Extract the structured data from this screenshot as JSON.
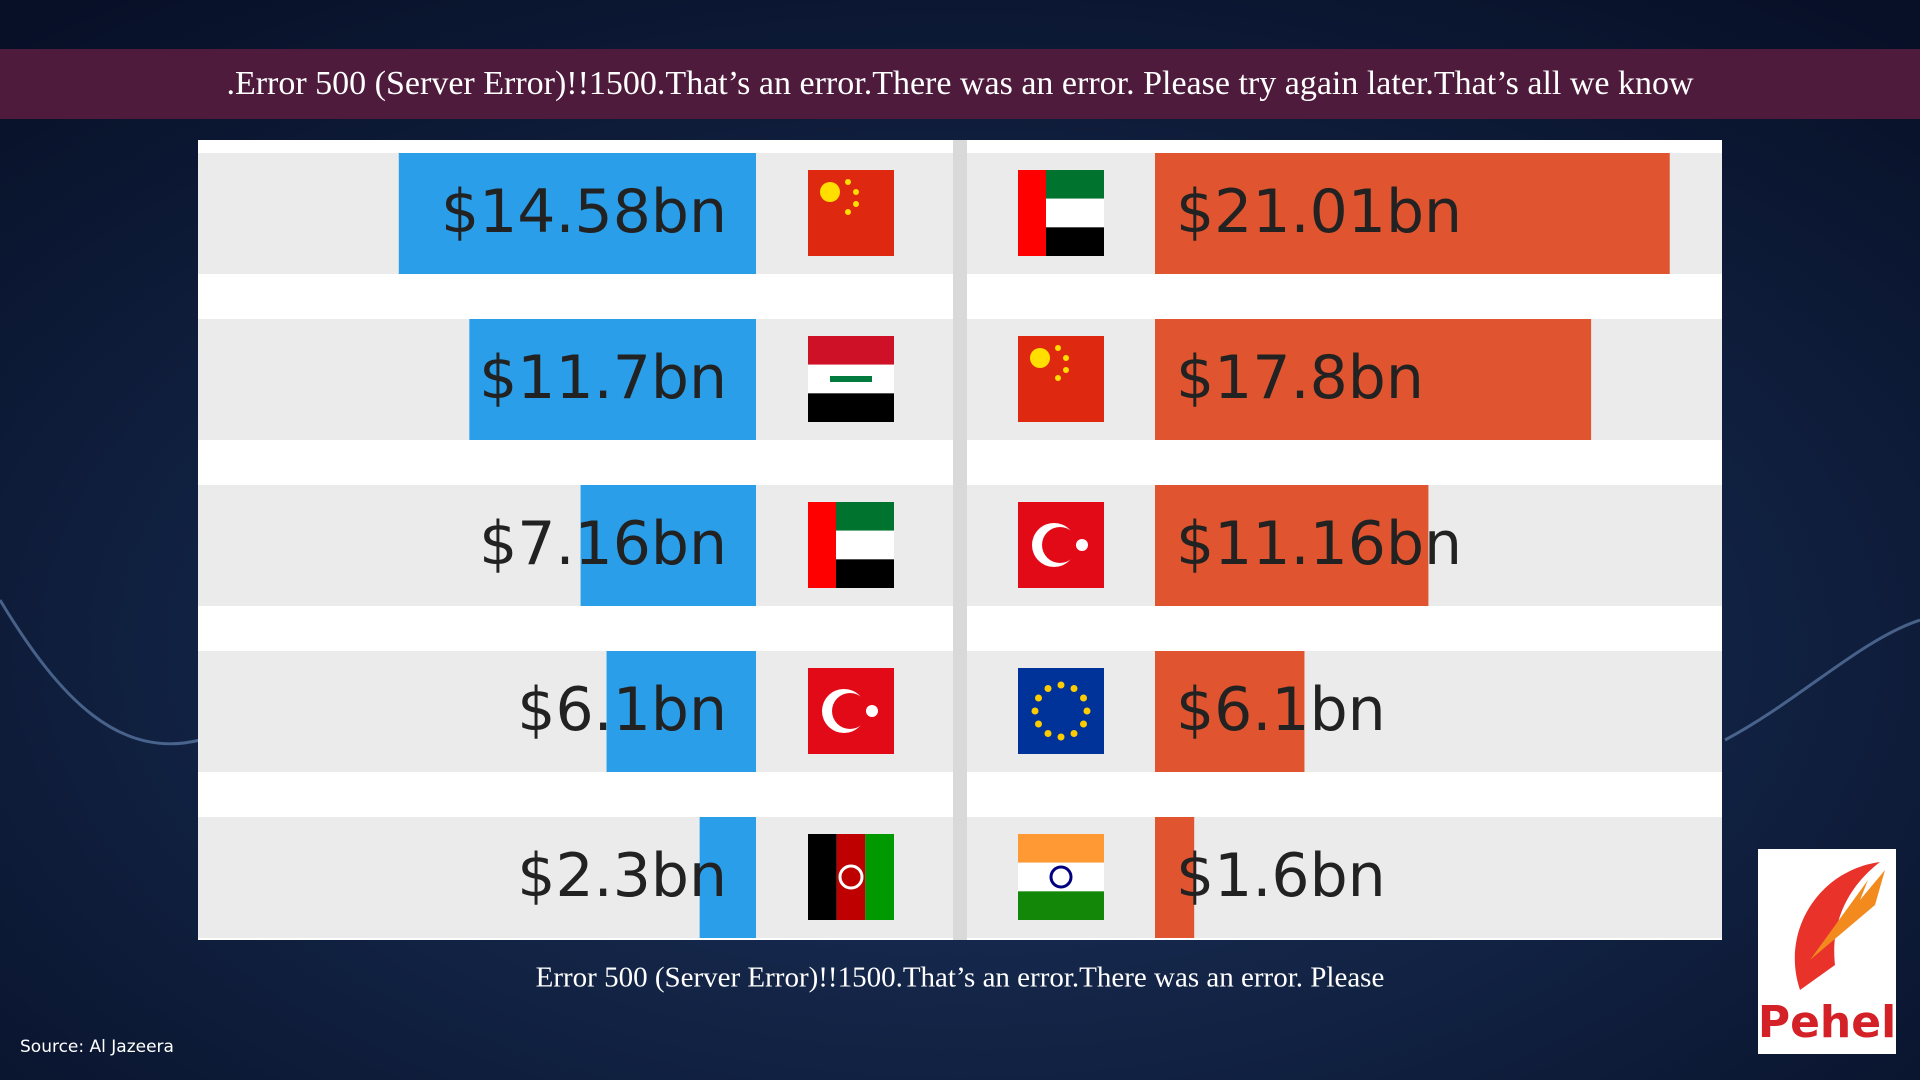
{
  "header": {
    "title": ".Error 500 (Server Error)!!1500.That’s an error.There was an error. Please try again later.That’s all we know"
  },
  "chart_data": [
    {
      "type": "bar",
      "categories": [
        null,
        null,
        null,
        null,
        null
      ],
      "values": [
        14.58,
        11.7,
        7.16,
        6.1,
        2.3
      ],
      "value_labels": [
        "$14.58bn",
        "$11.7bn",
        "$7.16bn",
        "$6.1bn",
        "$2.3bn"
      ],
      "color": "#2a9ee9"
    },
    {
      "type": "bar",
      "categories": [
        null,
        null,
        null,
        null,
        null
      ],
      "values": [
        21.01,
        17.8,
        11.16,
        6.1,
        1.6
      ],
      "value_labels": [
        "$21.01bn",
        "$17.8bn",
        "$11.16bn",
        "$6.1bn",
        "$1.6bn"
      ],
      "color": "#e0552f"
    }
  ],
  "caption": "Error 500 (Server Error)!!1500.That’s an error.There was an error. Please",
  "source": "Source: Al Jazeera",
  "logo": {
    "text": "Pehel"
  }
}
